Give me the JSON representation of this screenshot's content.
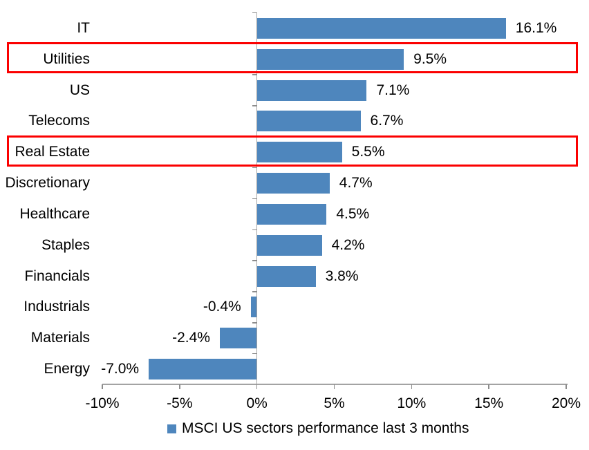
{
  "chart_data": {
    "type": "bar",
    "orientation": "horizontal",
    "categories": [
      "IT",
      "Utilities",
      "US",
      "Telecoms",
      "Real Estate",
      "Discretionary",
      "Healthcare",
      "Staples",
      "Financials",
      "Industrials",
      "Materials",
      "Energy"
    ],
    "values": [
      16.1,
      9.5,
      7.1,
      6.7,
      5.5,
      4.7,
      4.5,
      4.2,
      3.8,
      -0.4,
      -2.4,
      -7.0
    ],
    "value_labels": [
      "16.1%",
      "9.5%",
      "7.1%",
      "6.7%",
      "5.5%",
      "4.7%",
      "4.5%",
      "4.2%",
      "3.8%",
      "-0.4%",
      "-2.4%",
      "-7.0%"
    ],
    "xlim": [
      -10,
      20
    ],
    "x_ticks": [
      -10,
      -5,
      0,
      5,
      10,
      15,
      20
    ],
    "x_tick_labels": [
      "-10%",
      "-5%",
      "0%",
      "5%",
      "10%",
      "15%",
      "20%"
    ],
    "grid": false,
    "legend": "MSCI US sectors performance last 3 months",
    "legend_position": "bottom",
    "highlighted_categories": [
      "Utilities",
      "Real Estate"
    ],
    "bar_color": "#4E86BD",
    "legend_swatch_color": "#4E86BD",
    "highlight_box_color": "#FB0000",
    "axis_color": "#A3A3A3",
    "tick_color": "#8C8C8C"
  }
}
